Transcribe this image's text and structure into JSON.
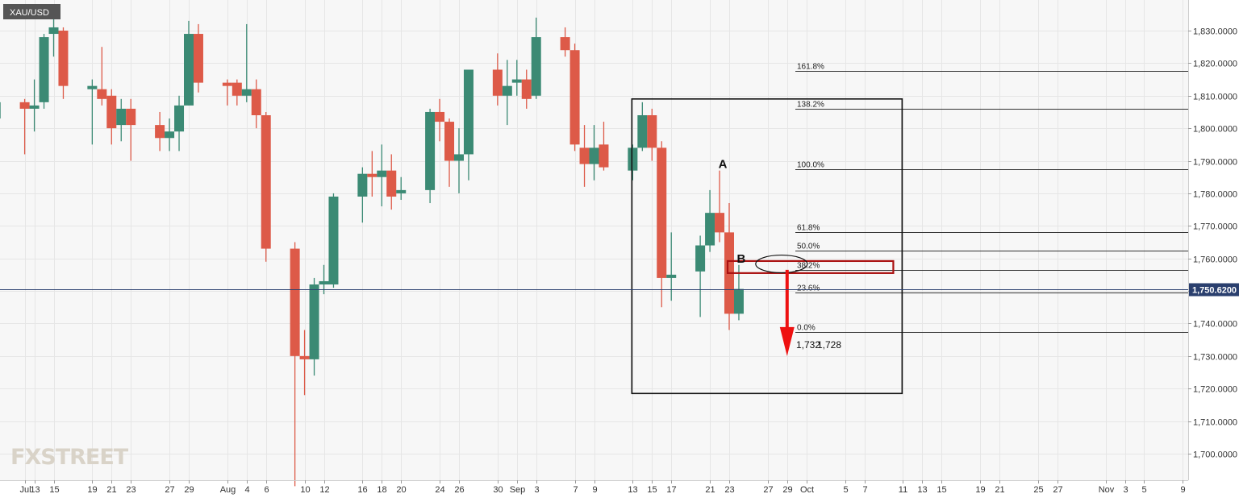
{
  "symbol": "XAU/USD",
  "watermark": "FXSTREET",
  "current_price_label": "1,750.6200",
  "colors": {
    "bull": "#3b8a74",
    "bear": "#dd5a48",
    "grid": "#e6e6e6",
    "background": "#f7f7f7",
    "price_line": "#2a3f6e",
    "price_tag": "#2a3f6e",
    "zone": "#aa1111",
    "arrow": "#ee1111"
  },
  "chart_data": {
    "type": "candlestick",
    "title": "XAU/USD",
    "ylim": [
      1692,
      1836
    ],
    "y_ticks": [
      1700,
      1710,
      1720,
      1730,
      1740,
      1750,
      1760,
      1770,
      1780,
      1790,
      1800,
      1810,
      1820,
      1830
    ],
    "y_tick_labels": [
      "1,700.0000",
      "1,710.0000",
      "1,720.0000",
      "1,730.0000",
      "1,740.0000",
      "1,750.0000",
      "1,760.0000",
      "1,770.0000",
      "1,780.0000",
      "1,790.0000",
      "1,800.0000",
      "1,810.0000",
      "1,820.0000",
      "1,830.0000"
    ],
    "x_ticks": [
      {
        "label": "Jul",
        "date": "2021-07-12"
      },
      {
        "label": "13",
        "date": "2021-07-13"
      },
      {
        "label": "15",
        "date": "2021-07-15"
      },
      {
        "label": "19",
        "date": "2021-07-19"
      },
      {
        "label": "21",
        "date": "2021-07-21"
      },
      {
        "label": "23",
        "date": "2021-07-23"
      },
      {
        "label": "27",
        "date": "2021-07-27"
      },
      {
        "label": "29",
        "date": "2021-07-29"
      },
      {
        "label": "Aug",
        "date": "2021-08-02"
      },
      {
        "label": "4",
        "date": "2021-08-04"
      },
      {
        "label": "6",
        "date": "2021-08-06"
      },
      {
        "label": "10",
        "date": "2021-08-10"
      },
      {
        "label": "12",
        "date": "2021-08-12"
      },
      {
        "label": "16",
        "date": "2021-08-16"
      },
      {
        "label": "18",
        "date": "2021-08-18"
      },
      {
        "label": "20",
        "date": "2021-08-20"
      },
      {
        "label": "24",
        "date": "2021-08-24"
      },
      {
        "label": "26",
        "date": "2021-08-26"
      },
      {
        "label": "30",
        "date": "2021-08-30"
      },
      {
        "label": "Sep",
        "date": "2021-09-01"
      },
      {
        "label": "3",
        "date": "2021-09-03"
      },
      {
        "label": "7",
        "date": "2021-09-07"
      },
      {
        "label": "9",
        "date": "2021-09-09"
      },
      {
        "label": "13",
        "date": "2021-09-13"
      },
      {
        "label": "15",
        "date": "2021-09-15"
      },
      {
        "label": "17",
        "date": "2021-09-17"
      },
      {
        "label": "21",
        "date": "2021-09-21"
      },
      {
        "label": "23",
        "date": "2021-09-23"
      },
      {
        "label": "27",
        "date": "2021-09-27"
      },
      {
        "label": "29",
        "date": "2021-09-29"
      },
      {
        "label": "Oct",
        "date": "2021-10-01"
      },
      {
        "label": "5",
        "date": "2021-10-05"
      },
      {
        "label": "7",
        "date": "2021-10-07"
      },
      {
        "label": "11",
        "date": "2021-10-11"
      },
      {
        "label": "13",
        "date": "2021-10-13"
      },
      {
        "label": "15",
        "date": "2021-10-15"
      },
      {
        "label": "19",
        "date": "2021-10-19"
      },
      {
        "label": "21",
        "date": "2021-10-21"
      },
      {
        "label": "25",
        "date": "2021-10-25"
      },
      {
        "label": "27",
        "date": "2021-10-27"
      },
      {
        "label": "Nov",
        "date": "2021-11-01"
      },
      {
        "label": "3",
        "date": "2021-11-03"
      },
      {
        "label": "5",
        "date": "2021-11-05"
      },
      {
        "label": "9",
        "date": "2021-11-09"
      }
    ],
    "candles": [
      {
        "date": "2021-07-09",
        "open": 1803,
        "high": 1812,
        "low": 1791,
        "close": 1808
      },
      {
        "date": "2021-07-12",
        "open": 1808,
        "high": 1809,
        "low": 1792,
        "close": 1806
      },
      {
        "date": "2021-07-13",
        "open": 1806,
        "high": 1815,
        "low": 1799,
        "close": 1807
      },
      {
        "date": "2021-07-14",
        "open": 1808,
        "high": 1829,
        "low": 1806,
        "close": 1828
      },
      {
        "date": "2021-07-15",
        "open": 1829,
        "high": 1834,
        "low": 1822,
        "close": 1831
      },
      {
        "date": "2021-07-16",
        "open": 1830,
        "high": 1831,
        "low": 1809,
        "close": 1813
      },
      {
        "date": "2021-07-19",
        "open": 1812,
        "high": 1815,
        "low": 1795,
        "close": 1813
      },
      {
        "date": "2021-07-20",
        "open": 1812,
        "high": 1825,
        "low": 1807,
        "close": 1809
      },
      {
        "date": "2021-07-21",
        "open": 1810,
        "high": 1812,
        "low": 1795,
        "close": 1800
      },
      {
        "date": "2021-07-22",
        "open": 1801,
        "high": 1809,
        "low": 1796,
        "close": 1806
      },
      {
        "date": "2021-07-23",
        "open": 1806,
        "high": 1809,
        "low": 1790,
        "close": 1801
      },
      {
        "date": "2021-07-26",
        "open": 1801,
        "high": 1805,
        "low": 1793,
        "close": 1797
      },
      {
        "date": "2021-07-27",
        "open": 1797,
        "high": 1803,
        "low": 1793,
        "close": 1799
      },
      {
        "date": "2021-07-28",
        "open": 1799,
        "high": 1810,
        "low": 1793,
        "close": 1807
      },
      {
        "date": "2021-07-29",
        "open": 1807,
        "high": 1833,
        "low": 1807,
        "close": 1829
      },
      {
        "date": "2021-07-30",
        "open": 1829,
        "high": 1832,
        "low": 1811,
        "close": 1814
      },
      {
        "date": "2021-08-02",
        "open": 1814,
        "high": 1815,
        "low": 1807,
        "close": 1813
      },
      {
        "date": "2021-08-03",
        "open": 1814,
        "high": 1815,
        "low": 1807,
        "close": 1810
      },
      {
        "date": "2021-08-04",
        "open": 1810,
        "high": 1832,
        "low": 1808,
        "close": 1812
      },
      {
        "date": "2021-08-05",
        "open": 1812,
        "high": 1815,
        "low": 1800,
        "close": 1804
      },
      {
        "date": "2021-08-06",
        "open": 1804,
        "high": 1805,
        "low": 1759,
        "close": 1763
      },
      {
        "date": "2021-08-09",
        "open": 1763,
        "high": 1765,
        "low": 1690,
        "close": 1730
      },
      {
        "date": "2021-08-10",
        "open": 1730,
        "high": 1738,
        "low": 1718,
        "close": 1729
      },
      {
        "date": "2021-08-11",
        "open": 1729,
        "high": 1754,
        "low": 1724,
        "close": 1752
      },
      {
        "date": "2021-08-12",
        "open": 1752,
        "high": 1758,
        "low": 1749,
        "close": 1753
      },
      {
        "date": "2021-08-13",
        "open": 1752,
        "high": 1780,
        "low": 1751,
        "close": 1779
      },
      {
        "date": "2021-08-16",
        "open": 1779,
        "high": 1788,
        "low": 1771,
        "close": 1786
      },
      {
        "date": "2021-08-17",
        "open": 1786,
        "high": 1793,
        "low": 1779,
        "close": 1785
      },
      {
        "date": "2021-08-18",
        "open": 1785,
        "high": 1795,
        "low": 1776,
        "close": 1787
      },
      {
        "date": "2021-08-19",
        "open": 1787,
        "high": 1792,
        "low": 1775,
        "close": 1779
      },
      {
        "date": "2021-08-20",
        "open": 1780,
        "high": 1785,
        "low": 1778,
        "close": 1781
      },
      {
        "date": "2021-08-23",
        "open": 1781,
        "high": 1806,
        "low": 1777,
        "close": 1805
      },
      {
        "date": "2021-08-24",
        "open": 1805,
        "high": 1809,
        "low": 1796,
        "close": 1802
      },
      {
        "date": "2021-08-25",
        "open": 1802,
        "high": 1803,
        "low": 1782,
        "close": 1790
      },
      {
        "date": "2021-08-26",
        "open": 1790,
        "high": 1800,
        "low": 1780,
        "close": 1792
      },
      {
        "date": "2021-08-27",
        "open": 1792,
        "high": 1818,
        "low": 1784,
        "close": 1818
      },
      {
        "date": "2021-08-30",
        "open": 1818,
        "high": 1823,
        "low": 1807,
        "close": 1810
      },
      {
        "date": "2021-08-31",
        "open": 1810,
        "high": 1821,
        "low": 1801,
        "close": 1813
      },
      {
        "date": "2021-09-01",
        "open": 1814,
        "high": 1821,
        "low": 1810,
        "close": 1815
      },
      {
        "date": "2021-09-02",
        "open": 1815,
        "high": 1818,
        "low": 1806,
        "close": 1809
      },
      {
        "date": "2021-09-03",
        "open": 1810,
        "high": 1834,
        "low": 1809,
        "close": 1828
      },
      {
        "date": "2021-09-06",
        "open": 1828,
        "high": 1831,
        "low": 1822,
        "close": 1824
      },
      {
        "date": "2021-09-07",
        "open": 1824,
        "high": 1826,
        "low": 1793,
        "close": 1795
      },
      {
        "date": "2021-09-08",
        "open": 1794,
        "high": 1801,
        "low": 1782,
        "close": 1789
      },
      {
        "date": "2021-09-09",
        "open": 1789,
        "high": 1801,
        "low": 1784,
        "close": 1794
      },
      {
        "date": "2021-09-10",
        "open": 1795,
        "high": 1802,
        "low": 1787,
        "close": 1788
      },
      {
        "date": "2021-09-13",
        "open": 1787,
        "high": 1795,
        "low": 1784,
        "close": 1794
      },
      {
        "date": "2021-09-14",
        "open": 1794,
        "high": 1808,
        "low": 1793,
        "close": 1804
      },
      {
        "date": "2021-09-15",
        "open": 1804,
        "high": 1806,
        "low": 1790,
        "close": 1794
      },
      {
        "date": "2021-09-16",
        "open": 1794,
        "high": 1796,
        "low": 1745,
        "close": 1754
      },
      {
        "date": "2021-09-17",
        "open": 1754,
        "high": 1768,
        "low": 1747,
        "close": 1755
      },
      {
        "date": "2021-09-20",
        "open": 1756,
        "high": 1767,
        "low": 1742,
        "close": 1764
      },
      {
        "date": "2021-09-21",
        "open": 1764,
        "high": 1781,
        "low": 1762,
        "close": 1774
      },
      {
        "date": "2021-09-22",
        "open": 1774,
        "high": 1787,
        "low": 1765,
        "close": 1768
      },
      {
        "date": "2021-09-23",
        "open": 1768,
        "high": 1777,
        "low": 1738,
        "close": 1743
      },
      {
        "date": "2021-09-24",
        "open": 1743,
        "high": 1758,
        "low": 1741,
        "close": 1750.62
      }
    ],
    "fib_levels": [
      {
        "label": "161.8%",
        "price": 1817.6
      },
      {
        "label": "138.2%",
        "price": 1806.1
      },
      {
        "label": "100.0%",
        "price": 1787.5
      },
      {
        "label": "61.8%",
        "price": 1768.0
      },
      {
        "label": "50.0%",
        "price": 1762.5
      },
      {
        "label": "38.2%",
        "price": 1756.4
      },
      {
        "label": "23.6%",
        "price": 1749.6
      },
      {
        "label": "0.0%",
        "price": 1737.5
      }
    ],
    "annotations": {
      "point_a": {
        "label": "A",
        "date": "2021-09-22",
        "price": 1787
      },
      "point_b": {
        "label": "B",
        "date": "2021-09-24",
        "price": 1758
      },
      "target_labels": [
        "1,732",
        "1,728"
      ],
      "target_price": 1730,
      "resistance_zone": {
        "low": 1755.5,
        "high": 1759.2
      },
      "box": {
        "from": "2021-09-14",
        "to": "2021-10-11",
        "low": 1718.5,
        "high": 1809
      }
    },
    "current_price": 1750.62
  }
}
